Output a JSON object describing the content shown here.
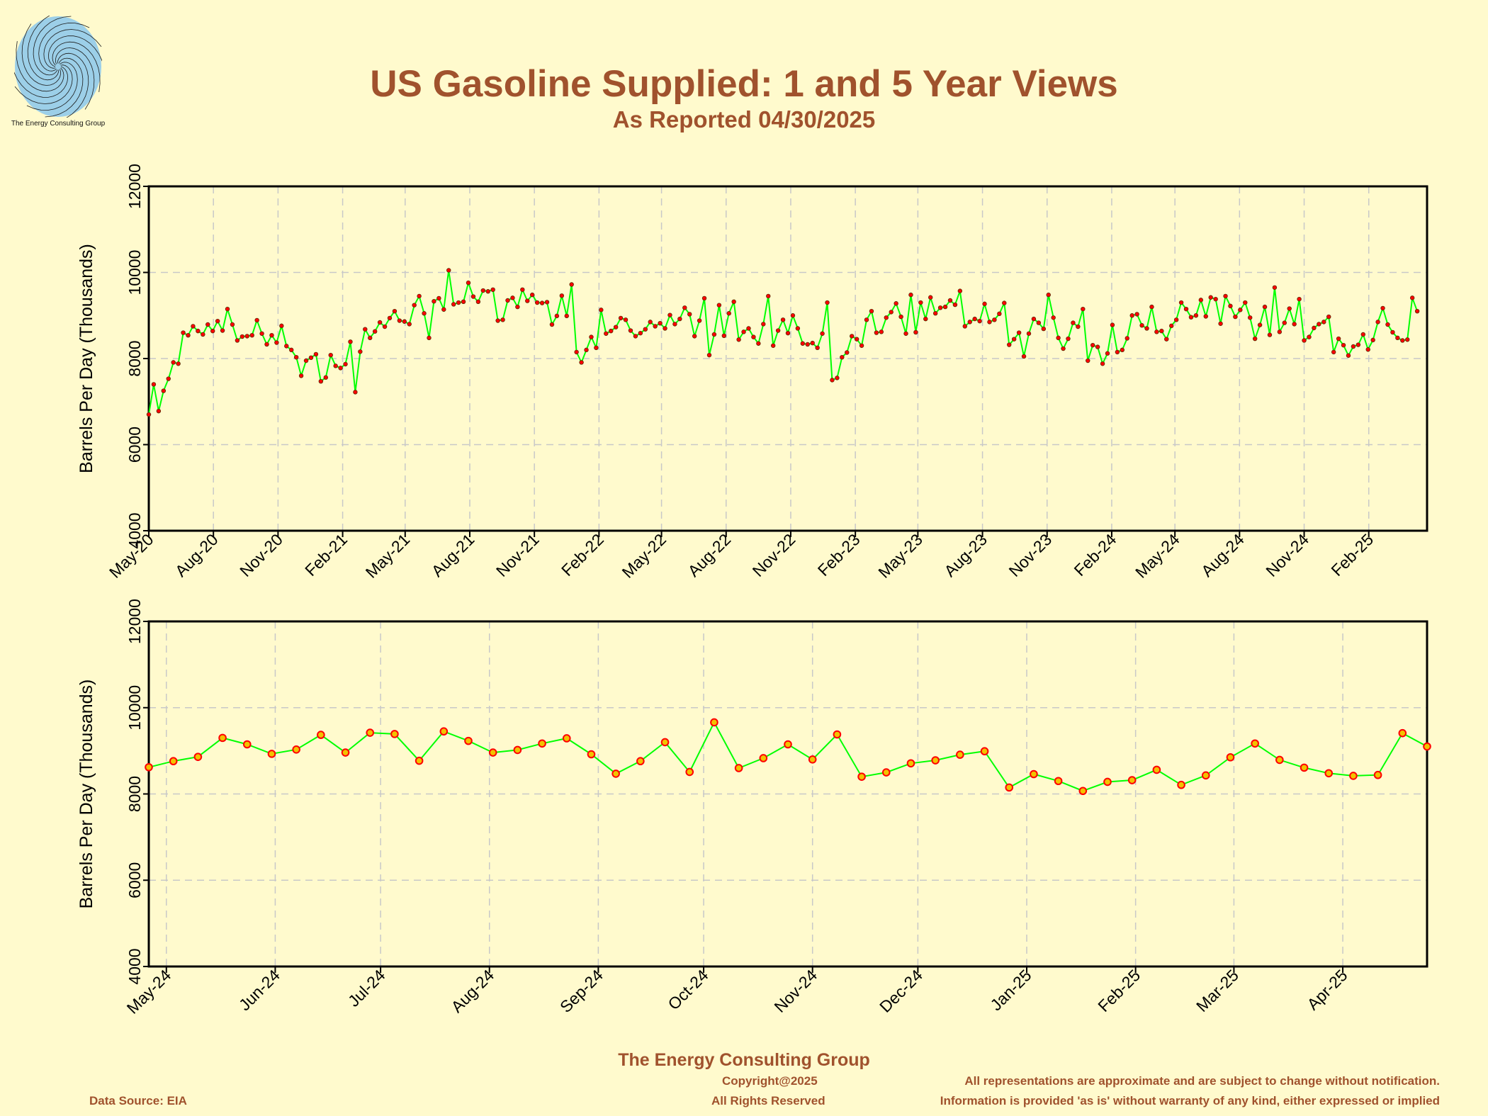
{
  "header": {
    "title": "US Gasoline Supplied: 1 and 5 Year Views",
    "subtitle": "As Reported 04/30/2025"
  },
  "logo": {
    "caption": "The Energy Consulting Group"
  },
  "footer": {
    "org": "The Energy Consulting Group",
    "copyright": "Copyright@2025",
    "rights": "All Rights Reserved",
    "data_source": "Data Source: EIA",
    "disclaimer_1": "All representations are approximate and are subject to change without notification.",
    "disclaimer_2": "Information is provided 'as is' without warranty of any kind, either expressed or implied"
  },
  "colors": {
    "background": "#fffacd",
    "title": "#a0522d",
    "line": "#00ff00",
    "marker": "#ff0000",
    "grid": "#c8c8c8"
  },
  "chart_data": [
    {
      "type": "line",
      "title": "",
      "ylabel": "Barrels Per Day (Thousands)",
      "xlabel": "",
      "ylim": [
        4000,
        12000
      ],
      "yticks": [
        4000,
        6000,
        8000,
        10000,
        12000
      ],
      "xlim": [
        "2020-05-01",
        "2025-04-25"
      ],
      "xticks": [
        {
          "date": "2020-05-01",
          "label": "May-20"
        },
        {
          "date": "2020-08-01",
          "label": "Aug-20"
        },
        {
          "date": "2020-11-01",
          "label": "Nov-20"
        },
        {
          "date": "2021-02-01",
          "label": "Feb-21"
        },
        {
          "date": "2021-05-01",
          "label": "May-21"
        },
        {
          "date": "2021-08-01",
          "label": "Aug-21"
        },
        {
          "date": "2021-11-01",
          "label": "Nov-21"
        },
        {
          "date": "2022-02-01",
          "label": "Feb-22"
        },
        {
          "date": "2022-05-01",
          "label": "May-22"
        },
        {
          "date": "2022-08-01",
          "label": "Aug-22"
        },
        {
          "date": "2022-11-01",
          "label": "Nov-22"
        },
        {
          "date": "2023-02-01",
          "label": "Feb-23"
        },
        {
          "date": "2023-05-01",
          "label": "May-23"
        },
        {
          "date": "2023-08-01",
          "label": "Aug-23"
        },
        {
          "date": "2023-11-01",
          "label": "Nov-23"
        },
        {
          "date": "2024-02-01",
          "label": "Feb-24"
        },
        {
          "date": "2024-05-01",
          "label": "May-24"
        },
        {
          "date": "2024-08-01",
          "label": "Aug-24"
        },
        {
          "date": "2024-11-01",
          "label": "Nov-24"
        },
        {
          "date": "2025-02-01",
          "label": "Feb-25"
        }
      ],
      "grid": true,
      "series": [
        {
          "start_date": "2020-05-01",
          "step_days": 7,
          "values": [
            6700,
            7400,
            6780,
            7250,
            7530,
            7910,
            7880,
            8600,
            8540,
            8750,
            8640,
            8560,
            8790,
            8640,
            8870,
            8650,
            9150,
            8790,
            8420,
            8510,
            8520,
            8540,
            8890,
            8580,
            8330,
            8540,
            8370,
            8760,
            8290,
            8200,
            8030,
            7600,
            7950,
            8020,
            8100,
            7470,
            7560,
            8080,
            7830,
            7780,
            7870,
            8390,
            7220,
            8160,
            8680,
            8480,
            8630,
            8840,
            8740,
            8940,
            9100,
            8880,
            8860,
            8800,
            9240,
            9450,
            9050,
            8480,
            9330,
            9400,
            9140,
            10050,
            9260,
            9300,
            9320,
            9760,
            9440,
            9320,
            9580,
            9560,
            9600,
            8880,
            8900,
            9350,
            9410,
            9200,
            9600,
            9340,
            9480,
            9300,
            9290,
            9310,
            8790,
            8990,
            9460,
            8990,
            9720,
            8150,
            7910,
            8200,
            8500,
            8250,
            9130,
            8580,
            8640,
            8730,
            8940,
            8900,
            8650,
            8520,
            8590,
            8680,
            8850,
            8750,
            8820,
            8700,
            9010,
            8800,
            8920,
            9180,
            9030,
            8520,
            8880,
            9400,
            8080,
            8560,
            9240,
            8530,
            9050,
            9320,
            8440,
            8620,
            8700,
            8500,
            8350,
            8800,
            9450,
            8300,
            8650,
            8900,
            8590,
            9000,
            8700,
            8350,
            8330,
            8360,
            8250,
            8580,
            9300,
            7500,
            7550,
            8030,
            8140,
            8520,
            8450,
            8300,
            8900,
            9100,
            8600,
            8620,
            8950,
            9080,
            9280,
            8970,
            8580,
            9480,
            8610,
            9300,
            8920,
            9420,
            9050,
            9180,
            9200,
            9350,
            9250,
            9570,
            8750,
            8850,
            8920,
            8870,
            9270,
            8850,
            8900,
            9040,
            9290,
            8320,
            8450,
            8600,
            8050,
            8580,
            8920,
            8830,
            8690,
            9480,
            8950,
            8480,
            8230,
            8460,
            8830,
            8740,
            9150,
            7950,
            8310,
            8270,
            7880,
            8120,
            8780,
            8150,
            8200,
            8470,
            9000,
            9030,
            8770,
            8700,
            9200,
            8620,
            8640,
            8450,
            8760,
            8900,
            9300,
            9150,
            8960,
            9000,
            9360,
            8980,
            9420,
            9380,
            8810,
            9450,
            9220,
            8970,
            9130,
            9300,
            8950,
            8460,
            8780,
            9200,
            8550,
            9650,
            8620,
            8830,
            9160,
            8800,
            9380,
            8420,
            8500,
            8710,
            8800,
            8850,
            8970,
            8150,
            8460,
            8310,
            8070,
            8280,
            8320,
            8560,
            8210,
            8430,
            8850,
            9170,
            8790,
            8610,
            8480,
            8420,
            8440,
            9410,
            9100
          ]
        }
      ]
    },
    {
      "type": "line",
      "title": "",
      "ylabel": "Barrels Per Day (Thousands)",
      "xlabel": "",
      "ylim": [
        4000,
        12000
      ],
      "yticks": [
        4000,
        6000,
        8000,
        10000,
        12000
      ],
      "xlim": [
        "2024-04-26",
        "2025-04-25"
      ],
      "xticks": [
        {
          "date": "2024-05-01",
          "label": "May-24"
        },
        {
          "date": "2024-06-01",
          "label": "Jun-24"
        },
        {
          "date": "2024-07-01",
          "label": "Jul-24"
        },
        {
          "date": "2024-08-01",
          "label": "Aug-24"
        },
        {
          "date": "2024-09-01",
          "label": "Sep-24"
        },
        {
          "date": "2024-10-01",
          "label": "Oct-24"
        },
        {
          "date": "2024-11-01",
          "label": "Nov-24"
        },
        {
          "date": "2024-12-01",
          "label": "Dec-24"
        },
        {
          "date": "2025-01-01",
          "label": "Jan-25"
        },
        {
          "date": "2025-02-01",
          "label": "Feb-25"
        },
        {
          "date": "2025-03-01",
          "label": "Mar-25"
        },
        {
          "date": "2025-04-01",
          "label": "Apr-25"
        }
      ],
      "grid": true,
      "series": [
        {
          "start_date": "2024-04-26",
          "step_days": 7,
          "values": [
            8620,
            8760,
            8860,
            9300,
            9150,
            8930,
            9030,
            9370,
            8960,
            9420,
            9390,
            8770,
            9450,
            9230,
            8960,
            9020,
            9170,
            9290,
            8920,
            8470,
            8760,
            9200,
            8510,
            9660,
            8600,
            8830,
            9150,
            8800,
            9380,
            8400,
            8500,
            8710,
            8780,
            8910,
            8990,
            8150,
            8460,
            8300,
            8070,
            8280,
            8320,
            8560,
            8210,
            8430,
            8850,
            9170,
            8790,
            8610,
            8480,
            8420,
            8440,
            9410,
            9100
          ]
        }
      ]
    }
  ]
}
